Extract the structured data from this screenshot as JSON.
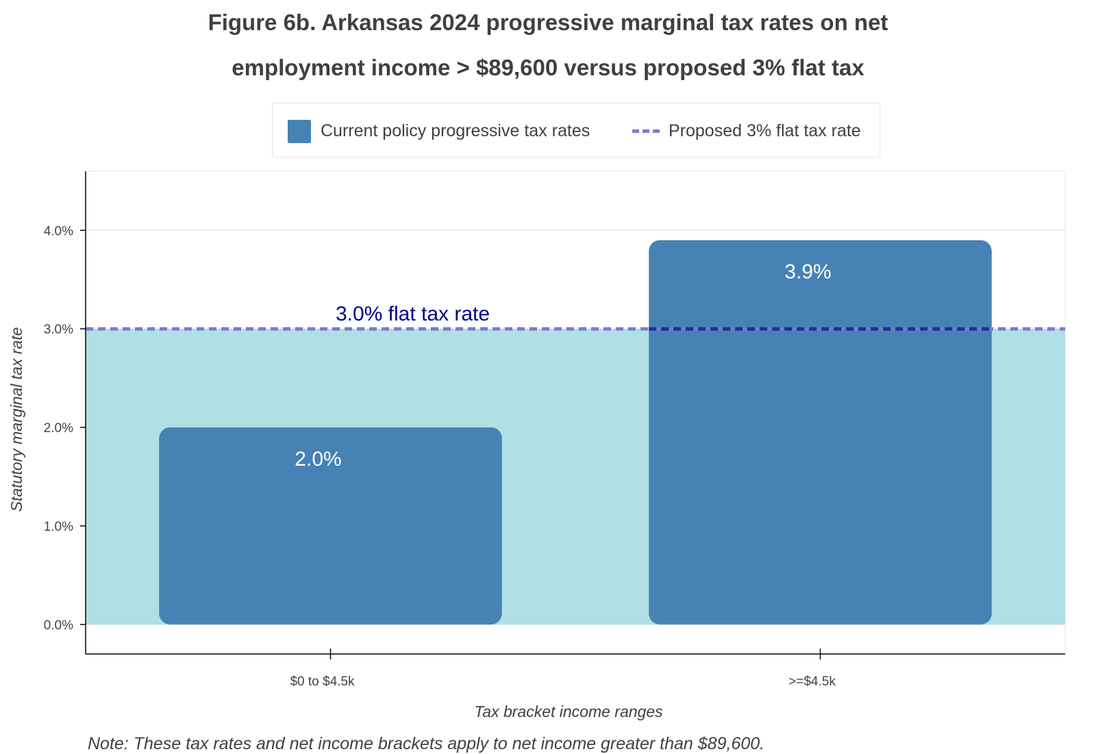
{
  "chart_data": {
    "type": "bar",
    "title_line1": "Figure 6b. Arkansas 2024 progressive marginal tax rates on net",
    "title_line2": "employment income > $89,600 versus proposed 3% flat tax",
    "categories": [
      "$0 to $4.5k",
      ">=$4.5k"
    ],
    "series": [
      {
        "name": "Current policy progressive tax rates",
        "values": [
          2.0,
          3.9
        ],
        "data_labels": [
          "2.0%",
          "3.9%"
        ]
      }
    ],
    "reference_line": {
      "name": "Proposed 3% flat tax rate",
      "value": 3.0,
      "annotation": "3.0% flat tax rate"
    },
    "xlabel": "Tax bracket income ranges",
    "ylabel": "Statutory marginal tax rate",
    "ylim": [
      -0.3,
      4.6
    ],
    "yticks": [
      0,
      1,
      2,
      3,
      4
    ],
    "ytick_labels": [
      "0.0%",
      "1.0%",
      "2.0%",
      "3.0%",
      "4.0%"
    ],
    "grid": true,
    "legend_position": "top-center",
    "note": "Note: These tax rates and net income brackets apply to net income greater than $89,600.",
    "colors": {
      "bar": "#4682b4",
      "band": "#b0dfe5",
      "flat_line": "#7b7bcf",
      "flat_line_over_bar": "#1f2d9e",
      "annotation": "#00008b"
    }
  }
}
